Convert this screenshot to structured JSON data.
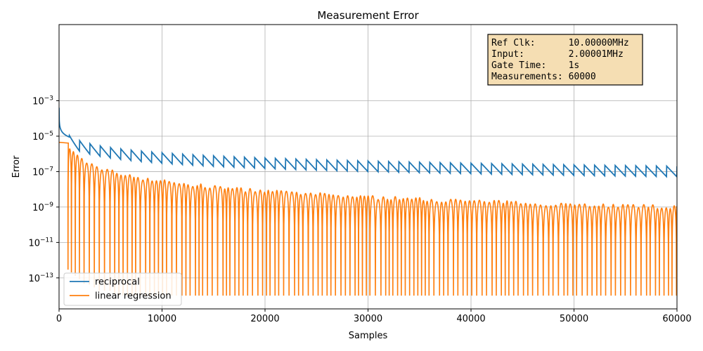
{
  "chart_data": {
    "type": "line",
    "title": "Measurement Error",
    "xlabel": "Samples",
    "ylabel": "Error",
    "xlim": [
      0,
      60000
    ],
    "ylim_log10": [
      -14.75,
      1.3
    ],
    "yscale": "log",
    "grid": true,
    "legend_position": "lower-left",
    "x_ticks": [
      {
        "value": 0,
        "label": "0"
      },
      {
        "value": 10000,
        "label": "10000"
      },
      {
        "value": 20000,
        "label": "20000"
      },
      {
        "value": 30000,
        "label": "30000"
      },
      {
        "value": 40000,
        "label": "40000"
      },
      {
        "value": 50000,
        "label": "50000"
      },
      {
        "value": 60000,
        "label": "60000"
      }
    ],
    "y_ticks": [
      {
        "exp": -13,
        "base": "10",
        "sup": "−13"
      },
      {
        "exp": -11,
        "base": "10",
        "sup": "−11"
      },
      {
        "exp": -9,
        "base": "10",
        "sup": "−9"
      },
      {
        "exp": -7,
        "base": "10",
        "sup": "−7"
      },
      {
        "exp": -5,
        "base": "10",
        "sup": "−5"
      },
      {
        "exp": -3,
        "base": "10",
        "sup": "−3"
      }
    ],
    "series": [
      {
        "name": "reciprocal",
        "color": "#1f77b4",
        "sawtooth_period": 1000,
        "start_error": 0.0004,
        "peak_at_1000": 1.1e-05,
        "peak_at_60000": 2e-07,
        "trough_at_60000": 5e-08
      },
      {
        "name": "linear regression",
        "color": "#ff7f0e",
        "plateau_error": 4.5e-06,
        "plateau_end": 900,
        "hump_at_2000": 6e-07,
        "hump_at_60000": 1e-09
      }
    ],
    "annotation": {
      "background": "#f5deb3",
      "lines": [
        "Ref Clk:      10.00000MHz",
        "Input:        2.00001MHz",
        "Gate Time:    1s",
        "Measurements: 60000"
      ]
    }
  }
}
